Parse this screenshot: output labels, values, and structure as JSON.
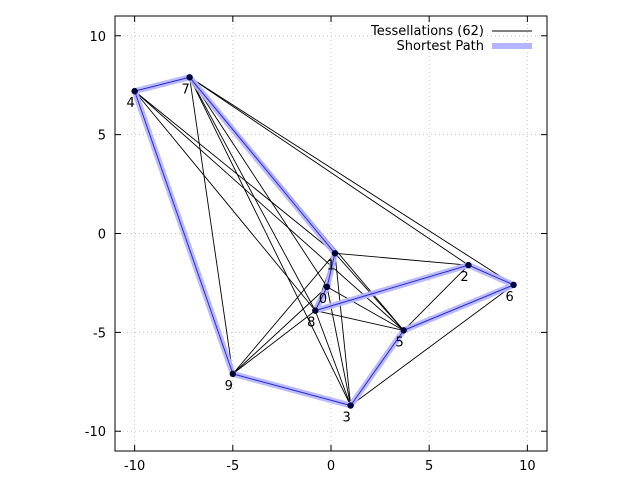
{
  "chart_data": {
    "type": "scatter",
    "title": "",
    "xlabel": "",
    "ylabel": "",
    "xlim": [
      -11,
      11
    ],
    "ylim": [
      -11,
      11
    ],
    "xticks": [
      -10,
      -5,
      0,
      5,
      10
    ],
    "yticks": [
      -10,
      -5,
      0,
      5,
      10
    ],
    "grid": true,
    "legend_position": "top-right",
    "legend": {
      "tessellations": "Tessellations (62)",
      "shortest_path": "Shortest Path"
    },
    "colors": {
      "edge": "#000000",
      "path": "#b4b4ff",
      "path_core": "#2a2ad8",
      "node": "#00003c",
      "grid": "#c8c8c8"
    },
    "points": [
      {
        "label": "0",
        "x": -0.2,
        "y": -2.7
      },
      {
        "label": "1",
        "x": 0.2,
        "y": -1.0
      },
      {
        "label": "2",
        "x": 7.0,
        "y": -1.6
      },
      {
        "label": "3",
        "x": 1.0,
        "y": -8.7
      },
      {
        "label": "4",
        "x": -10.0,
        "y": 7.2
      },
      {
        "label": "5",
        "x": 3.7,
        "y": -4.9
      },
      {
        "label": "6",
        "x": 9.3,
        "y": -2.6
      },
      {
        "label": "7",
        "x": -7.2,
        "y": 7.9
      },
      {
        "label": "8",
        "x": -0.8,
        "y": -3.9
      },
      {
        "label": "9",
        "x": -5.0,
        "y": -7.1
      }
    ],
    "edges": [
      [
        4,
        7
      ],
      [
        4,
        9
      ],
      [
        4,
        1
      ],
      [
        4,
        8
      ],
      [
        4,
        5
      ],
      [
        7,
        1
      ],
      [
        7,
        2
      ],
      [
        7,
        6
      ],
      [
        7,
        9
      ],
      [
        7,
        0
      ],
      [
        7,
        8
      ],
      [
        7,
        5
      ],
      [
        7,
        3
      ],
      [
        1,
        2
      ],
      [
        1,
        0
      ],
      [
        1,
        8
      ],
      [
        1,
        5
      ],
      [
        1,
        9
      ],
      [
        1,
        3
      ],
      [
        2,
        6
      ],
      [
        2,
        5
      ],
      [
        6,
        5
      ],
      [
        6,
        3
      ],
      [
        5,
        3
      ],
      [
        5,
        8
      ],
      [
        5,
        0
      ],
      [
        0,
        8
      ],
      [
        0,
        9
      ],
      [
        0,
        3
      ],
      [
        8,
        3
      ],
      [
        8,
        9
      ],
      [
        9,
        3
      ]
    ],
    "shortest_path": [
      8,
      0,
      1,
      7,
      4,
      9,
      3,
      5,
      6,
      2,
      8
    ]
  }
}
